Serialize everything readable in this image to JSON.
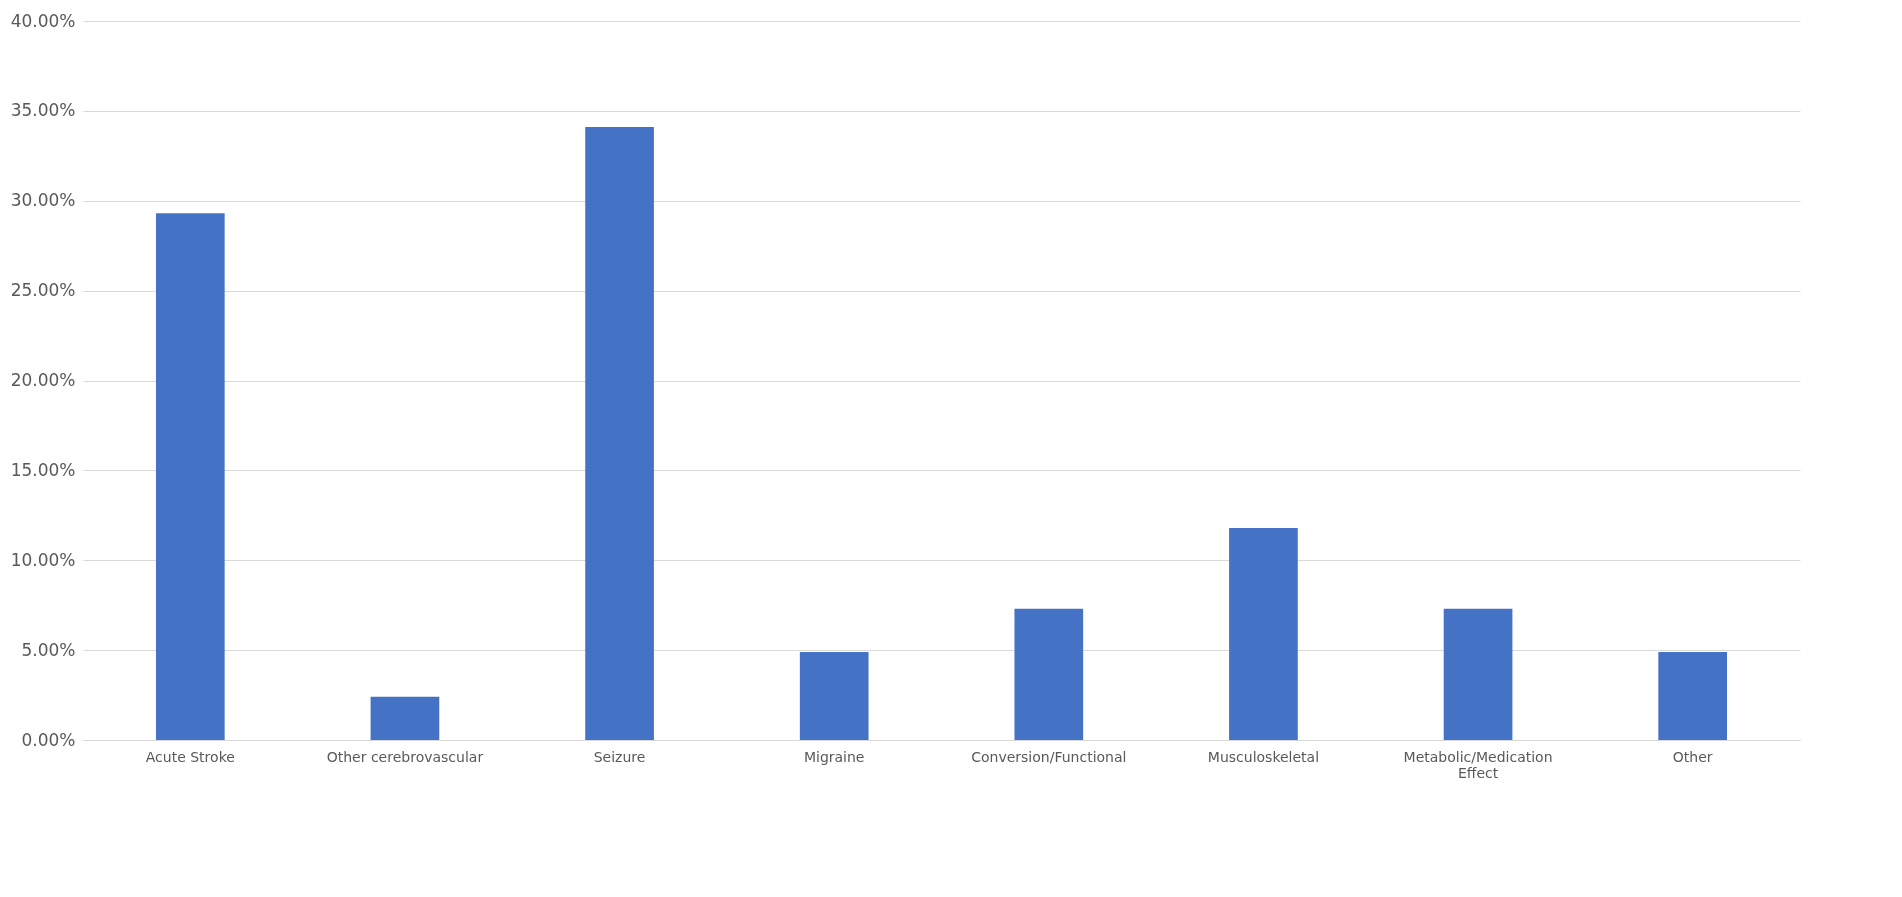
{
  "chart_data": {
    "type": "bar",
    "categories": [
      "Acute Stroke",
      "Other cerebrovascular",
      "Seizure",
      "Migraine",
      "Conversion/Functional",
      "Musculoskeletal",
      "Metabolic/Medication Effect",
      "Other"
    ],
    "values": [
      29.3,
      2.4,
      34.1,
      4.9,
      7.3,
      11.8,
      7.3,
      4.9
    ],
    "color": "#4472c4",
    "ylim": [
      0,
      40
    ],
    "yticks": [
      {
        "value": 0,
        "label": "0.00%"
      },
      {
        "value": 5,
        "label": "5.00%"
      },
      {
        "value": 10,
        "label": "10.00%"
      },
      {
        "value": 15,
        "label": "15.00%"
      },
      {
        "value": 20,
        "label": "20.00%"
      },
      {
        "value": 25,
        "label": "25.00%"
      },
      {
        "value": 30,
        "label": "30.00%"
      },
      {
        "value": 35,
        "label": "35.00%"
      },
      {
        "value": 40,
        "label": "40.00%"
      }
    ],
    "grid": "y"
  }
}
